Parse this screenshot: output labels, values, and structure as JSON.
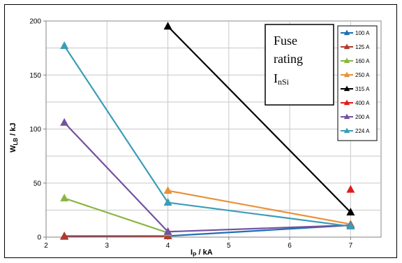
{
  "chart_data": {
    "type": "line",
    "xlabel": "I",
    "xlabel_sub": "P",
    "xlabel_unit": " / kA",
    "ylabel": "W",
    "ylabel_sub": "LB",
    "ylabel_unit": " / kJ",
    "xlim": [
      2,
      7.5
    ],
    "ylim": [
      0,
      200
    ],
    "xticks": [
      2,
      3,
      4,
      5,
      6,
      7
    ],
    "yticks": [
      0,
      50,
      100,
      150,
      200
    ],
    "grid": true,
    "legend_position": "right",
    "annotation": {
      "line1": "Fuse",
      "line2": "rating",
      "line3_main": "I",
      "line3_sub": "nSi"
    },
    "series": [
      {
        "name": "100 A",
        "color": "#1f6fb4",
        "x": [
          2.3,
          4,
          7
        ],
        "y": [
          0.5,
          1,
          11
        ]
      },
      {
        "name": "125 A",
        "color": "#b03a2e",
        "x": [
          2.3,
          4
        ],
        "y": [
          1,
          1
        ]
      },
      {
        "name": "160 A",
        "color": "#8bb543",
        "x": [
          2.3,
          4
        ],
        "y": [
          36,
          4
        ]
      },
      {
        "name": "250 A",
        "color": "#e8913a",
        "x": [
          4,
          7
        ],
        "y": [
          43,
          12
        ]
      },
      {
        "name": "315 A",
        "color": "#000000",
        "x": [
          4,
          7
        ],
        "y": [
          195,
          23
        ]
      },
      {
        "name": "400 A",
        "color": "#e01b1b",
        "x": [
          7
        ],
        "y": [
          44
        ]
      },
      {
        "name": "200 A",
        "color": "#7452a0",
        "x": [
          2.3,
          4,
          7
        ],
        "y": [
          106,
          5,
          11
        ]
      },
      {
        "name": "224 A",
        "color": "#3a9db7",
        "x": [
          2.3,
          4,
          7
        ],
        "y": [
          177,
          32,
          10
        ]
      }
    ]
  }
}
